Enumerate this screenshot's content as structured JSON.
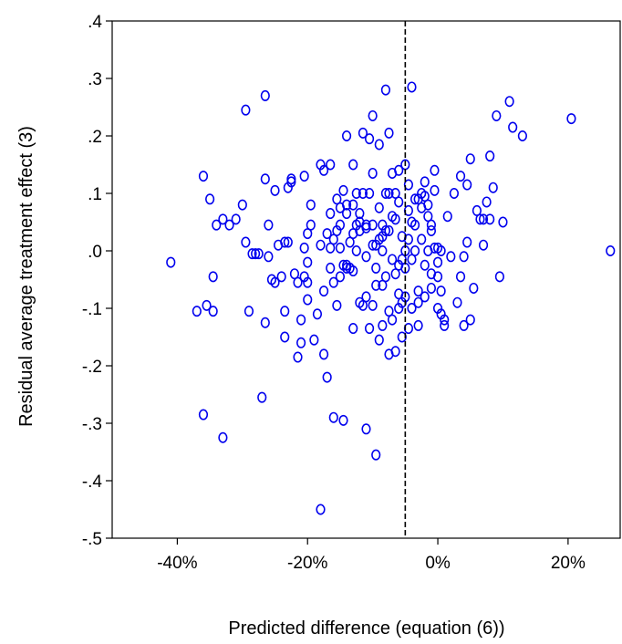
{
  "chart_data": {
    "type": "scatter",
    "title": "",
    "xlabel": "Predicted difference (equation (6))",
    "ylabel": "Residual average treatment effect (3)",
    "xlim": [
      -0.5,
      0.28
    ],
    "ylim": [
      -0.5,
      0.4
    ],
    "x_ticks": [
      -0.4,
      -0.2,
      0.0,
      0.2
    ],
    "x_tick_labels": [
      "-40%",
      "-20%",
      "0%",
      "20%"
    ],
    "y_ticks": [
      0.4,
      0.3,
      0.2,
      0.1,
      0.0,
      -0.1,
      -0.2,
      -0.3,
      -0.4,
      -0.5
    ],
    "y_tick_labels": [
      ".4",
      ".3",
      ".2",
      ".1",
      ".0",
      "-.1",
      "-.2",
      "-.3",
      "-.4",
      "-.5"
    ],
    "reference_line": {
      "axis": "x",
      "value": -0.05,
      "style": "dashed"
    },
    "grid": false,
    "marker": "hollow-circle",
    "marker_color": "#0000ee",
    "points": [
      [
        -0.41,
        -0.02
      ],
      [
        -0.37,
        -0.105
      ],
      [
        -0.36,
        -0.285
      ],
      [
        -0.36,
        0.13
      ],
      [
        -0.355,
        -0.095
      ],
      [
        -0.35,
        0.09
      ],
      [
        -0.345,
        -0.105
      ],
      [
        -0.345,
        -0.045
      ],
      [
        -0.34,
        0.045
      ],
      [
        -0.33,
        -0.325
      ],
      [
        -0.33,
        0.055
      ],
      [
        -0.32,
        0.045
      ],
      [
        -0.31,
        0.055
      ],
      [
        -0.3,
        0.08
      ],
      [
        -0.295,
        0.245
      ],
      [
        -0.295,
        0.015
      ],
      [
        -0.29,
        -0.105
      ],
      [
        -0.285,
        -0.005
      ],
      [
        -0.28,
        -0.005
      ],
      [
        -0.275,
        -0.005
      ],
      [
        -0.27,
        -0.255
      ],
      [
        -0.265,
        0.27
      ],
      [
        -0.265,
        -0.125
      ],
      [
        -0.265,
        0.125
      ],
      [
        -0.26,
        0.045
      ],
      [
        -0.26,
        -0.01
      ],
      [
        -0.255,
        -0.05
      ],
      [
        -0.25,
        -0.055
      ],
      [
        -0.25,
        0.105
      ],
      [
        -0.245,
        0.01
      ],
      [
        -0.24,
        -0.045
      ],
      [
        -0.235,
        -0.15
      ],
      [
        -0.235,
        -0.105
      ],
      [
        -0.235,
        0.015
      ],
      [
        -0.23,
        0.11
      ],
      [
        -0.23,
        0.015
      ],
      [
        -0.225,
        0.12
      ],
      [
        -0.225,
        0.125
      ],
      [
        -0.22,
        -0.04
      ],
      [
        -0.215,
        -0.055
      ],
      [
        -0.215,
        -0.185
      ],
      [
        -0.21,
        -0.16
      ],
      [
        -0.21,
        -0.12
      ],
      [
        -0.205,
        0.005
      ],
      [
        -0.205,
        -0.045
      ],
      [
        -0.205,
        0.13
      ],
      [
        -0.2,
        -0.055
      ],
      [
        -0.2,
        0.03
      ],
      [
        -0.2,
        -0.085
      ],
      [
        -0.2,
        -0.02
      ],
      [
        -0.195,
        0.045
      ],
      [
        -0.195,
        0.08
      ],
      [
        -0.19,
        -0.155
      ],
      [
        -0.185,
        -0.11
      ],
      [
        -0.18,
        0.15
      ],
      [
        -0.18,
        0.01
      ],
      [
        -0.175,
        0.14
      ],
      [
        -0.175,
        -0.07
      ],
      [
        -0.175,
        -0.18
      ],
      [
        -0.17,
        -0.22
      ],
      [
        -0.165,
        0.15
      ],
      [
        -0.165,
        0.005
      ],
      [
        -0.165,
        -0.03
      ],
      [
        -0.16,
        0.02
      ],
      [
        -0.16,
        -0.29
      ],
      [
        -0.155,
        -0.095
      ],
      [
        -0.155,
        0.09
      ],
      [
        -0.15,
        -0.045
      ],
      [
        -0.15,
        0.045
      ],
      [
        -0.15,
        0.005
      ],
      [
        -0.145,
        0.105
      ],
      [
        -0.145,
        -0.025
      ],
      [
        -0.14,
        0.08
      ],
      [
        -0.14,
        -0.03
      ],
      [
        -0.14,
        -0.025
      ],
      [
        -0.14,
        0.065
      ],
      [
        -0.135,
        -0.03
      ],
      [
        -0.135,
        0.015
      ],
      [
        -0.13,
        -0.035
      ],
      [
        -0.13,
        0.03
      ],
      [
        -0.13,
        0.15
      ],
      [
        -0.13,
        -0.135
      ],
      [
        -0.125,
        0.045
      ],
      [
        -0.125,
        0.1
      ],
      [
        -0.125,
        0.0
      ],
      [
        -0.12,
        0.065
      ],
      [
        -0.12,
        0.035
      ],
      [
        -0.12,
        -0.09
      ],
      [
        -0.12,
        0.05
      ],
      [
        -0.115,
        0.205
      ],
      [
        -0.115,
        -0.095
      ],
      [
        -0.115,
        0.1
      ],
      [
        -0.11,
        0.04
      ],
      [
        -0.11,
        -0.01
      ],
      [
        -0.11,
        0.045
      ],
      [
        -0.105,
        0.195
      ],
      [
        -0.105,
        0.1
      ],
      [
        -0.1,
        0.01
      ],
      [
        -0.1,
        -0.095
      ],
      [
        -0.1,
        0.135
      ],
      [
        -0.1,
        0.045
      ],
      [
        -0.095,
        -0.03
      ],
      [
        -0.095,
        0.01
      ],
      [
        -0.09,
        -0.155
      ],
      [
        -0.09,
        0.02
      ],
      [
        -0.09,
        0.075
      ],
      [
        -0.085,
        0.0
      ],
      [
        -0.085,
        0.025
      ],
      [
        -0.085,
        0.045
      ],
      [
        -0.08,
        -0.045
      ],
      [
        -0.08,
        0.035
      ],
      [
        -0.08,
        0.1
      ],
      [
        -0.075,
        -0.105
      ],
      [
        -0.075,
        0.1
      ],
      [
        -0.075,
        0.035
      ],
      [
        -0.07,
        -0.015
      ],
      [
        -0.07,
        0.06
      ],
      [
        -0.07,
        -0.12
      ],
      [
        -0.065,
        0.1
      ],
      [
        -0.065,
        0.055
      ],
      [
        -0.06,
        -0.075
      ],
      [
        -0.06,
        -0.1
      ],
      [
        -0.06,
        0.085
      ],
      [
        -0.055,
        -0.09
      ],
      [
        -0.055,
        0.025
      ],
      [
        -0.055,
        -0.015
      ],
      [
        -0.05,
        0.0
      ],
      [
        -0.05,
        -0.03
      ],
      [
        -0.045,
        0.02
      ],
      [
        -0.045,
        -0.135
      ],
      [
        -0.045,
        0.07
      ],
      [
        -0.04,
        0.05
      ],
      [
        -0.04,
        -0.015
      ],
      [
        -0.035,
        0.045
      ],
      [
        -0.035,
        0.0
      ],
      [
        -0.03,
        -0.07
      ],
      [
        -0.03,
        -0.13
      ],
      [
        -0.03,
        -0.09
      ],
      [
        -0.025,
        0.1
      ],
      [
        -0.025,
        0.02
      ],
      [
        -0.02,
        -0.025
      ],
      [
        -0.02,
        0.095
      ],
      [
        -0.015,
        0.0
      ],
      [
        -0.015,
        0.06
      ],
      [
        -0.01,
        -0.04
      ],
      [
        -0.01,
        0.035
      ],
      [
        -0.005,
        0.105
      ],
      [
        -0.005,
        0.005
      ],
      [
        0.0,
        -0.02
      ],
      [
        0.0,
        -0.045
      ],
      [
        -0.145,
        -0.295
      ],
      [
        -0.14,
        0.2
      ],
      [
        -0.11,
        -0.31
      ],
      [
        -0.1,
        0.235
      ],
      [
        -0.095,
        -0.355
      ],
      [
        -0.09,
        0.185
      ],
      [
        -0.08,
        0.28
      ],
      [
        -0.075,
        0.205
      ],
      [
        -0.07,
        0.135
      ],
      [
        -0.06,
        0.14
      ],
      [
        -0.05,
        0.15
      ],
      [
        -0.045,
        0.115
      ],
      [
        -0.04,
        0.285
      ],
      [
        -0.035,
        0.09
      ],
      [
        -0.03,
        0.09
      ],
      [
        -0.025,
        0.075
      ],
      [
        -0.02,
        0.12
      ],
      [
        -0.015,
        0.08
      ],
      [
        -0.01,
        0.045
      ],
      [
        -0.005,
        0.14
      ],
      [
        0.0,
        0.005
      ],
      [
        0.005,
        0.0
      ],
      [
        0.005,
        -0.07
      ],
      [
        0.01,
        -0.12
      ],
      [
        0.01,
        -0.13
      ],
      [
        0.015,
        0.06
      ],
      [
        0.02,
        -0.01
      ],
      [
        0.025,
        0.1
      ],
      [
        0.03,
        -0.09
      ],
      [
        0.035,
        -0.045
      ],
      [
        0.035,
        0.13
      ],
      [
        0.04,
        -0.01
      ],
      [
        0.04,
        -0.13
      ],
      [
        0.045,
        0.015
      ],
      [
        0.045,
        0.115
      ],
      [
        0.05,
        -0.12
      ],
      [
        0.05,
        0.16
      ],
      [
        0.055,
        -0.065
      ],
      [
        0.06,
        0.07
      ],
      [
        0.065,
        0.055
      ],
      [
        0.07,
        0.055
      ],
      [
        0.07,
        0.01
      ],
      [
        0.075,
        0.085
      ],
      [
        0.08,
        0.165
      ],
      [
        0.08,
        0.055
      ],
      [
        0.085,
        0.11
      ],
      [
        0.09,
        0.235
      ],
      [
        0.095,
        -0.045
      ],
      [
        0.1,
        0.05
      ],
      [
        0.11,
        0.26
      ],
      [
        0.115,
        0.215
      ],
      [
        0.13,
        0.2
      ],
      [
        0.205,
        0.23
      ],
      [
        0.265,
        0.0
      ],
      [
        -0.18,
        -0.45
      ],
      [
        -0.065,
        -0.175
      ],
      [
        -0.055,
        -0.15
      ],
      [
        -0.075,
        -0.18
      ],
      [
        -0.085,
        -0.13
      ],
      [
        -0.105,
        -0.135
      ],
      [
        -0.11,
        -0.08
      ],
      [
        -0.095,
        -0.06
      ],
      [
        -0.085,
        -0.06
      ],
      [
        -0.065,
        -0.04
      ],
      [
        -0.06,
        -0.025
      ],
      [
        -0.05,
        -0.08
      ],
      [
        -0.04,
        -0.1
      ],
      [
        -0.02,
        -0.08
      ],
      [
        -0.01,
        -0.065
      ],
      [
        0.0,
        -0.1
      ],
      [
        0.005,
        -0.11
      ],
      [
        -0.165,
        0.065
      ],
      [
        -0.17,
        0.03
      ],
      [
        -0.155,
        0.035
      ],
      [
        -0.15,
        0.075
      ],
      [
        -0.13,
        0.08
      ],
      [
        -0.16,
        -0.055
      ]
    ]
  }
}
